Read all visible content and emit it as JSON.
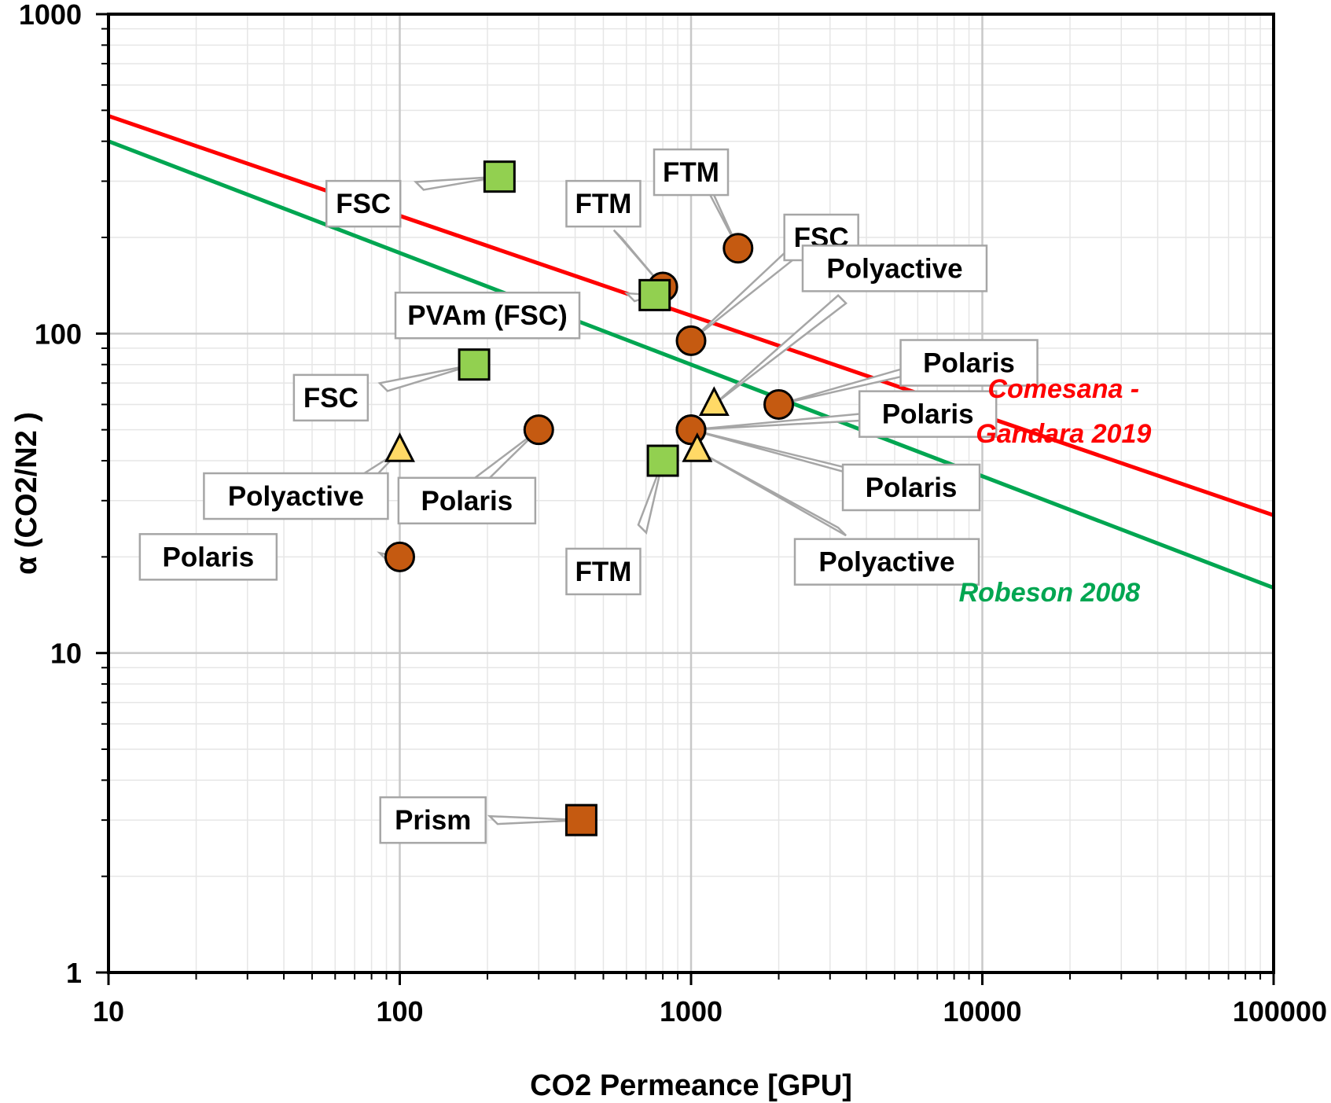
{
  "chart_data": {
    "type": "scatter",
    "xlabel": "CO2 Permeance [GPU]",
    "ylabel": "α (CO2/N2 )",
    "xscale": "log",
    "yscale": "log",
    "xlim": [
      10,
      100000
    ],
    "ylim": [
      1,
      1000
    ],
    "xticks": [
      "10",
      "100",
      "1000",
      "10000",
      "100000"
    ],
    "yticks": [
      "1",
      "10",
      "100",
      "1000"
    ],
    "grid": true,
    "colors": {
      "circle": "#c55a11",
      "green_square": "#92d050",
      "triangle": "#ffd966",
      "orange_square": "#c55a11",
      "comesana_line": "#ff0000",
      "robeson_line": "#00a651"
    },
    "points": [
      {
        "x": 100,
        "y": 20,
        "marker": "circle",
        "label": "Polaris"
      },
      {
        "x": 300,
        "y": 50,
        "marker": "circle",
        "label": "Polaris"
      },
      {
        "x": 800,
        "y": 140,
        "marker": "circle",
        "label": "FTM"
      },
      {
        "x": 1450,
        "y": 185,
        "marker": "circle",
        "label": "FTM"
      },
      {
        "x": 1000,
        "y": 95,
        "marker": "circle",
        "label": "FSC"
      },
      {
        "x": 2000,
        "y": 60,
        "marker": "circle",
        "label": "Polaris"
      },
      {
        "x": 1000,
        "y": 50,
        "marker": "circle",
        "label": "Polaris"
      },
      {
        "x": 1000,
        "y": 50,
        "marker": "circle",
        "label": "Polaris"
      },
      {
        "x": 220,
        "y": 310,
        "marker": "green-square",
        "label": "FSC"
      },
      {
        "x": 180,
        "y": 80,
        "marker": "green-square",
        "label": "FSC"
      },
      {
        "x": 750,
        "y": 132,
        "marker": "green-square",
        "label": "PVAm (FSC)"
      },
      {
        "x": 800,
        "y": 40,
        "marker": "green-square",
        "label": "FTM"
      },
      {
        "x": 100,
        "y": 43,
        "marker": "triangle",
        "label": "Polyactive"
      },
      {
        "x": 1200,
        "y": 60,
        "marker": "triangle",
        "label": "Polyactive"
      },
      {
        "x": 1050,
        "y": 43,
        "marker": "triangle",
        "label": "Polyactive"
      },
      {
        "x": 420,
        "y": 3,
        "marker": "orange-square",
        "label": "Prism"
      }
    ],
    "callouts": [
      {
        "text": "Polaris",
        "point": 0,
        "box_x": 22,
        "box_y": 20,
        "lead_x": 88,
        "lead_y": 20
      },
      {
        "text": "Polaris",
        "point": 1,
        "box_x": 170,
        "box_y": 30,
        "lead_x": 180,
        "lead_y": 33.5
      },
      {
        "text": "FTM",
        "point": 2,
        "box_x": 500,
        "box_y": 255,
        "lead_x": 560,
        "lead_y": 205
      },
      {
        "text": "FTM",
        "point": 3,
        "box_x": 1000,
        "box_y": 320,
        "lead_x": 1160,
        "lead_y": 280
      },
      {
        "text": "FSC",
        "point": 4,
        "box_x": 2800,
        "box_y": 200,
        "lead_x": 2220,
        "lead_y": 178
      },
      {
        "text": "Polaris",
        "point": 5,
        "box_x": 9000,
        "box_y": 81,
        "lead_x": 7200,
        "lead_y": 81
      },
      {
        "text": "Polaris",
        "point": 6,
        "box_x": 6500,
        "box_y": 56,
        "lead_x": 5400,
        "lead_y": 56
      },
      {
        "text": "Polaris",
        "point": 7,
        "box_x": 5700,
        "box_y": 33,
        "lead_x": 4500,
        "lead_y": 35
      },
      {
        "text": "FSC",
        "point": 8,
        "box_x": 75,
        "box_y": 255,
        "lead_x": 117,
        "lead_y": 290
      },
      {
        "text": "FSC",
        "point": 9,
        "box_x": 58,
        "box_y": 63,
        "lead_x": 88,
        "lead_y": 68
      },
      {
        "text": "PVAm (FSC)",
        "point": 10,
        "box_x": 200,
        "box_y": 114,
        "lead_x": 620,
        "lead_y": 130
      },
      {
        "text": "FTM",
        "point": 11,
        "box_x": 500,
        "box_y": 18,
        "lead_x": 680,
        "lead_y": 24.5
      },
      {
        "text": "Polyactive",
        "point": 12,
        "box_x": 44,
        "box_y": 31,
        "lead_x": 76,
        "lead_y": 35
      },
      {
        "text": "Polyactive",
        "point": 13,
        "box_x": 5000,
        "box_y": 160,
        "lead_x": 3300,
        "lead_y": 128
      },
      {
        "text": "Polyactive",
        "point": 14,
        "box_x": 4700,
        "box_y": 19.3,
        "lead_x": 3300,
        "lead_y": 24
      },
      {
        "text": "Prism",
        "point": 15,
        "box_x": 130,
        "box_y": 3,
        "lead_x": 210,
        "lead_y": 3
      }
    ],
    "lines": [
      {
        "name": "Comesana - Gandara 2019",
        "label_lines": [
          "Comesana -",
          "Gandara 2019"
        ],
        "color": "#ff0000",
        "x": [
          10,
          100000
        ],
        "y": [
          480,
          27
        ],
        "label_x": 19000,
        "label_y": 63
      },
      {
        "name": "Robeson 2008",
        "label_lines": [
          "Robeson 2008"
        ],
        "color": "#00a651",
        "x": [
          10,
          100000
        ],
        "y": [
          400,
          16
        ],
        "label_x": 17000,
        "label_y": 14.5
      }
    ]
  }
}
